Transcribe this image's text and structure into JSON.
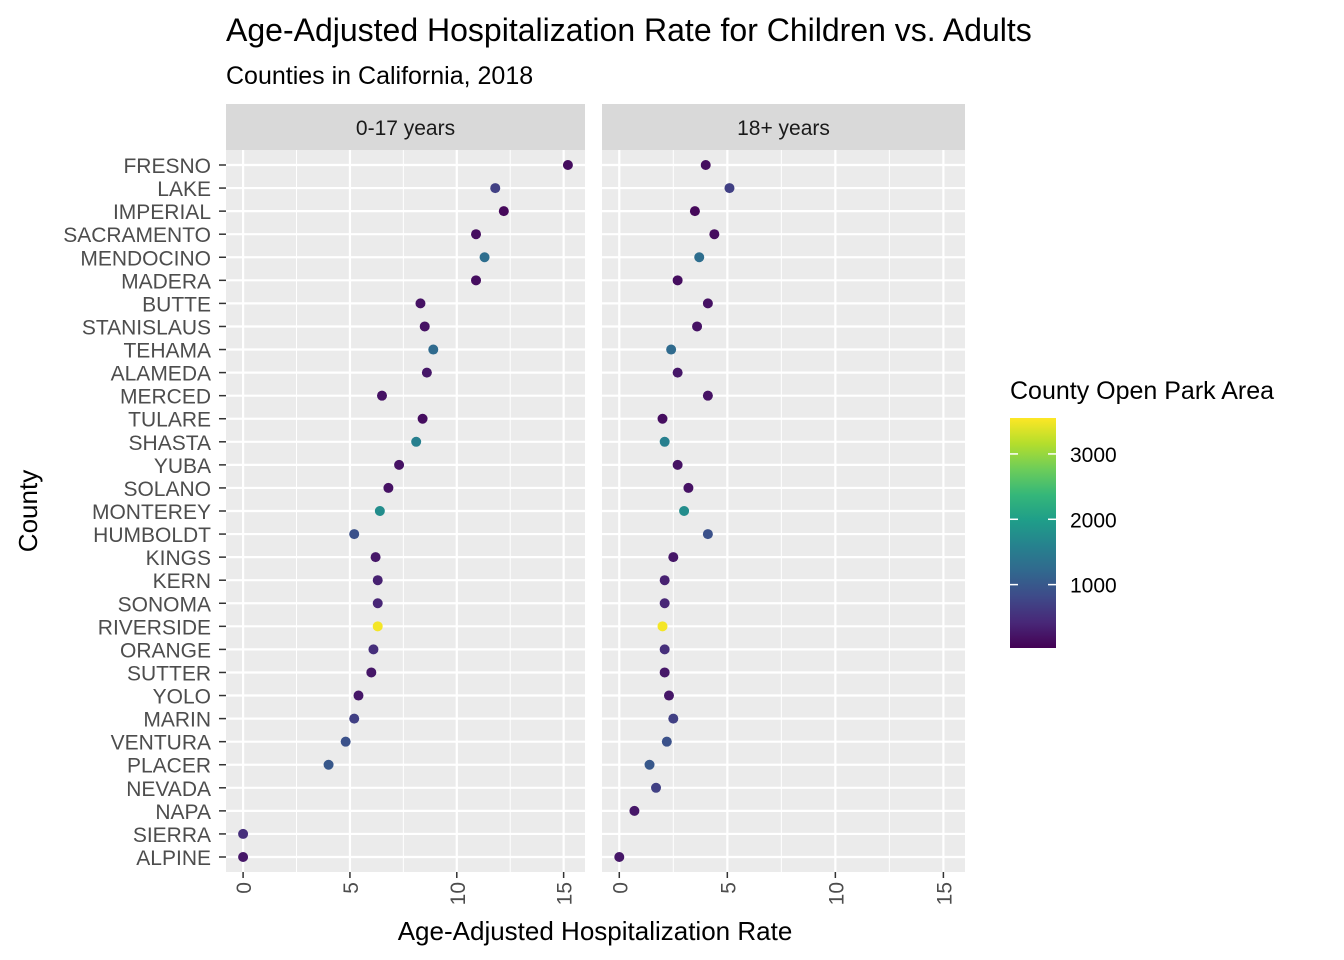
{
  "chart_data": {
    "type": "scatter",
    "title": "Age-Adjusted Hospitalization Rate for Children vs. Adults",
    "subtitle": "Counties in California, 2018",
    "xlabel": "Age-Adjusted Hospitalization Rate",
    "ylabel": "County",
    "xlim": [
      -0.8,
      16
    ],
    "x_ticks": [
      "0",
      "5",
      "10",
      "15"
    ],
    "grid": true,
    "facets": [
      "0-17 years",
      "18+ years"
    ],
    "counties": [
      "FRESNO",
      "LAKE",
      "IMPERIAL",
      "SACRAMENTO",
      "MENDOCINO",
      "MADERA",
      "BUTTE",
      "STANISLAUS",
      "TEHAMA",
      "ALAMEDA",
      "MERCED",
      "TULARE",
      "SHASTA",
      "YUBA",
      "SOLANO",
      "MONTEREY",
      "HUMBOLDT",
      "KINGS",
      "KERN",
      "SONOMA",
      "RIVERSIDE",
      "ORANGE",
      "SUTTER",
      "YOLO",
      "MARIN",
      "VENTURA",
      "PLACER",
      "NEVADA",
      "NAPA",
      "SIERRA",
      "ALPINE"
    ],
    "park_area": [
      150,
      700,
      100,
      150,
      1300,
      150,
      200,
      200,
      1250,
      250,
      200,
      150,
      1550,
      200,
      200,
      1750,
      900,
      250,
      350,
      400,
      3500,
      500,
      250,
      250,
      700,
      900,
      1000,
      700,
      250,
      500,
      250
    ],
    "series": [
      {
        "name": "0-17 years",
        "values": [
          15.2,
          11.8,
          12.2,
          10.9,
          11.3,
          10.9,
          8.3,
          8.5,
          8.9,
          8.6,
          6.5,
          8.4,
          8.1,
          7.3,
          6.8,
          6.4,
          5.2,
          6.2,
          6.3,
          6.3,
          6.3,
          6.1,
          6.0,
          5.4,
          5.2,
          4.8,
          4.0,
          null,
          null,
          0.0,
          0.0
        ]
      },
      {
        "name": "18+ years",
        "values": [
          4.0,
          5.1,
          3.5,
          4.4,
          3.7,
          2.7,
          4.1,
          3.6,
          2.4,
          2.7,
          4.1,
          2.0,
          2.1,
          2.7,
          3.2,
          3.0,
          4.1,
          2.5,
          2.1,
          2.1,
          2.0,
          2.1,
          2.1,
          2.3,
          2.5,
          2.2,
          1.4,
          1.7,
          0.7,
          null,
          0.0
        ]
      }
    ],
    "legend": {
      "title": "County Open Park Area",
      "placement": "right",
      "range": [
        30,
        3550
      ],
      "breaks": [
        {
          "value": 1000,
          "label": "1000"
        },
        {
          "value": 2000,
          "label": "2000"
        },
        {
          "value": 3000,
          "label": "3000"
        }
      ],
      "colors": [
        "#440154",
        "#482878",
        "#3E4A89",
        "#31688E",
        "#26828E",
        "#1F9E89",
        "#35B779",
        "#6DCD59",
        "#B4DE2C",
        "#FDE725"
      ]
    },
    "colors": {
      "panel_bg": "#EBEBEB",
      "strip_bg": "#D9D9D9",
      "grid_major": "#FFFFFF"
    }
  }
}
